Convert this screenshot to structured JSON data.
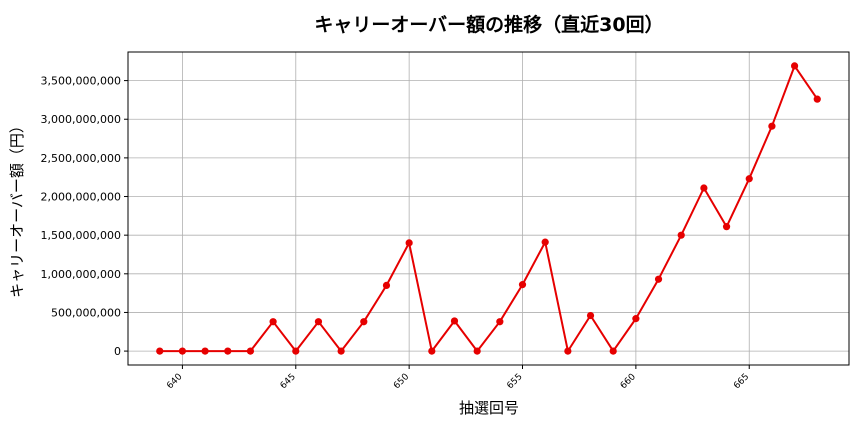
{
  "chart_data": {
    "type": "line",
    "title": "キャリーオーバー額の推移（直近30回）",
    "xlabel": "抽選回号",
    "ylabel": "キャリーオーバー額（円）",
    "x": [
      639,
      640,
      641,
      642,
      643,
      644,
      645,
      646,
      647,
      648,
      649,
      650,
      651,
      652,
      653,
      654,
      655,
      656,
      657,
      658,
      659,
      660,
      661,
      662,
      663,
      664,
      665,
      666,
      667,
      668
    ],
    "series": [
      {
        "values": [
          0,
          0,
          0,
          0,
          0,
          380000000,
          0,
          380000000,
          0,
          380000000,
          850000000,
          1400000000,
          0,
          390000000,
          0,
          380000000,
          860000000,
          1410000000,
          0,
          460000000,
          0,
          420000000,
          930000000,
          1500000000,
          2110000000,
          1610000000,
          2230000000,
          2910000000,
          3690000000,
          3260000000
        ]
      }
    ],
    "xlim": [
      637.6,
      669.4
    ],
    "ylim": [
      -180000000,
      3870000000
    ],
    "xticks": [
      {
        "value": 640,
        "label": "640"
      },
      {
        "value": 645,
        "label": "645"
      },
      {
        "value": 650,
        "label": "650"
      },
      {
        "value": 655,
        "label": "655"
      },
      {
        "value": 660,
        "label": "660"
      },
      {
        "value": 665,
        "label": "665"
      }
    ],
    "yticks": [
      {
        "value": 0,
        "label": "0"
      },
      {
        "value": 500000000,
        "label": "500,000,000"
      },
      {
        "value": 1000000000,
        "label": "1,000,000,000"
      },
      {
        "value": 1500000000,
        "label": "1,500,000,000"
      },
      {
        "value": 2000000000,
        "label": "2,000,000,000"
      },
      {
        "value": 2500000000,
        "label": "2,500,000,000"
      },
      {
        "value": 3000000000,
        "label": "3,000,000,000"
      },
      {
        "value": 3500000000,
        "label": "3,500,000,000"
      }
    ],
    "grid": true,
    "line_color": "#e60000",
    "marker": "circle"
  }
}
